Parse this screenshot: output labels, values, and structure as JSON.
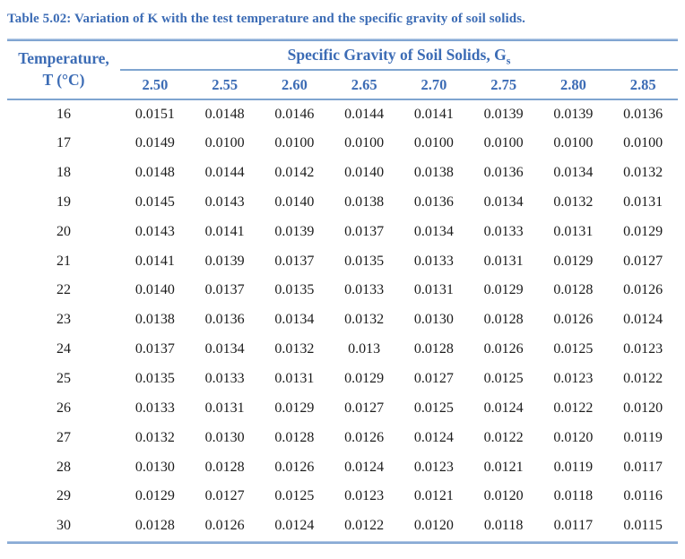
{
  "page": {
    "title": "Table 5.02: Variation of K with the test temperature and the specific gravity of soil solids.",
    "accent_text_color": "#3c6cb5",
    "rule_color": "#7fa5d0",
    "body_text_color": "#1c1c1c",
    "background_color": "#ffffff"
  },
  "table": {
    "row_header_line1": "Temperature,",
    "row_header_line2": "T (°C)",
    "group_header": "Specific Gravity of Soil Solids, G",
    "group_header_subscript": "s",
    "columns": [
      "2.50",
      "2.55",
      "2.60",
      "2.65",
      "2.70",
      "2.75",
      "2.80",
      "2.85"
    ],
    "rows": [
      {
        "temp": "16",
        "values": [
          "0.0151",
          "0.0148",
          "0.0146",
          "0.0144",
          "0.0141",
          "0.0139",
          "0.0139",
          "0.0136"
        ]
      },
      {
        "temp": "17",
        "values": [
          "0.0149",
          "0.0100",
          "0.0100",
          "0.0100",
          "0.0100",
          "0.0100",
          "0.0100",
          "0.0100"
        ]
      },
      {
        "temp": "18",
        "values": [
          "0.0148",
          "0.0144",
          "0.0142",
          "0.0140",
          "0.0138",
          "0.0136",
          "0.0134",
          "0.0132"
        ]
      },
      {
        "temp": "19",
        "values": [
          "0.0145",
          "0.0143",
          "0.0140",
          "0.0138",
          "0.0136",
          "0.0134",
          "0.0132",
          "0.0131"
        ]
      },
      {
        "temp": "20",
        "values": [
          "0.0143",
          "0.0141",
          "0.0139",
          "0.0137",
          "0.0134",
          "0.0133",
          "0.0131",
          "0.0129"
        ]
      },
      {
        "temp": "21",
        "values": [
          "0.0141",
          "0.0139",
          "0.0137",
          "0.0135",
          "0.0133",
          "0.0131",
          "0.0129",
          "0.0127"
        ]
      },
      {
        "temp": "22",
        "values": [
          "0.0140",
          "0.0137",
          "0.0135",
          "0.0133",
          "0.0131",
          "0.0129",
          "0.0128",
          "0.0126"
        ]
      },
      {
        "temp": "23",
        "values": [
          "0.0138",
          "0.0136",
          "0.0134",
          "0.0132",
          "0.0130",
          "0.0128",
          "0.0126",
          "0.0124"
        ]
      },
      {
        "temp": "24",
        "values": [
          "0.0137",
          "0.0134",
          "0.0132",
          "0.013",
          "0.0128",
          "0.0126",
          "0.0125",
          "0.0123"
        ]
      },
      {
        "temp": "25",
        "values": [
          "0.0135",
          "0.0133",
          "0.0131",
          "0.0129",
          "0.0127",
          "0.0125",
          "0.0123",
          "0.0122"
        ]
      },
      {
        "temp": "26",
        "values": [
          "0.0133",
          "0.0131",
          "0.0129",
          "0.0127",
          "0.0125",
          "0.0124",
          "0.0122",
          "0.0120"
        ]
      },
      {
        "temp": "27",
        "values": [
          "0.0132",
          "0.0130",
          "0.0128",
          "0.0126",
          "0.0124",
          "0.0122",
          "0.0120",
          "0.0119"
        ]
      },
      {
        "temp": "28",
        "values": [
          "0.0130",
          "0.0128",
          "0.0126",
          "0.0124",
          "0.0123",
          "0.0121",
          "0.0119",
          "0.0117"
        ]
      },
      {
        "temp": "29",
        "values": [
          "0.0129",
          "0.0127",
          "0.0125",
          "0.0123",
          "0.0121",
          "0.0120",
          "0.0118",
          "0.0116"
        ]
      },
      {
        "temp": "30",
        "values": [
          "0.0128",
          "0.0126",
          "0.0124",
          "0.0122",
          "0.0120",
          "0.0118",
          "0.0117",
          "0.0115"
        ]
      }
    ]
  }
}
